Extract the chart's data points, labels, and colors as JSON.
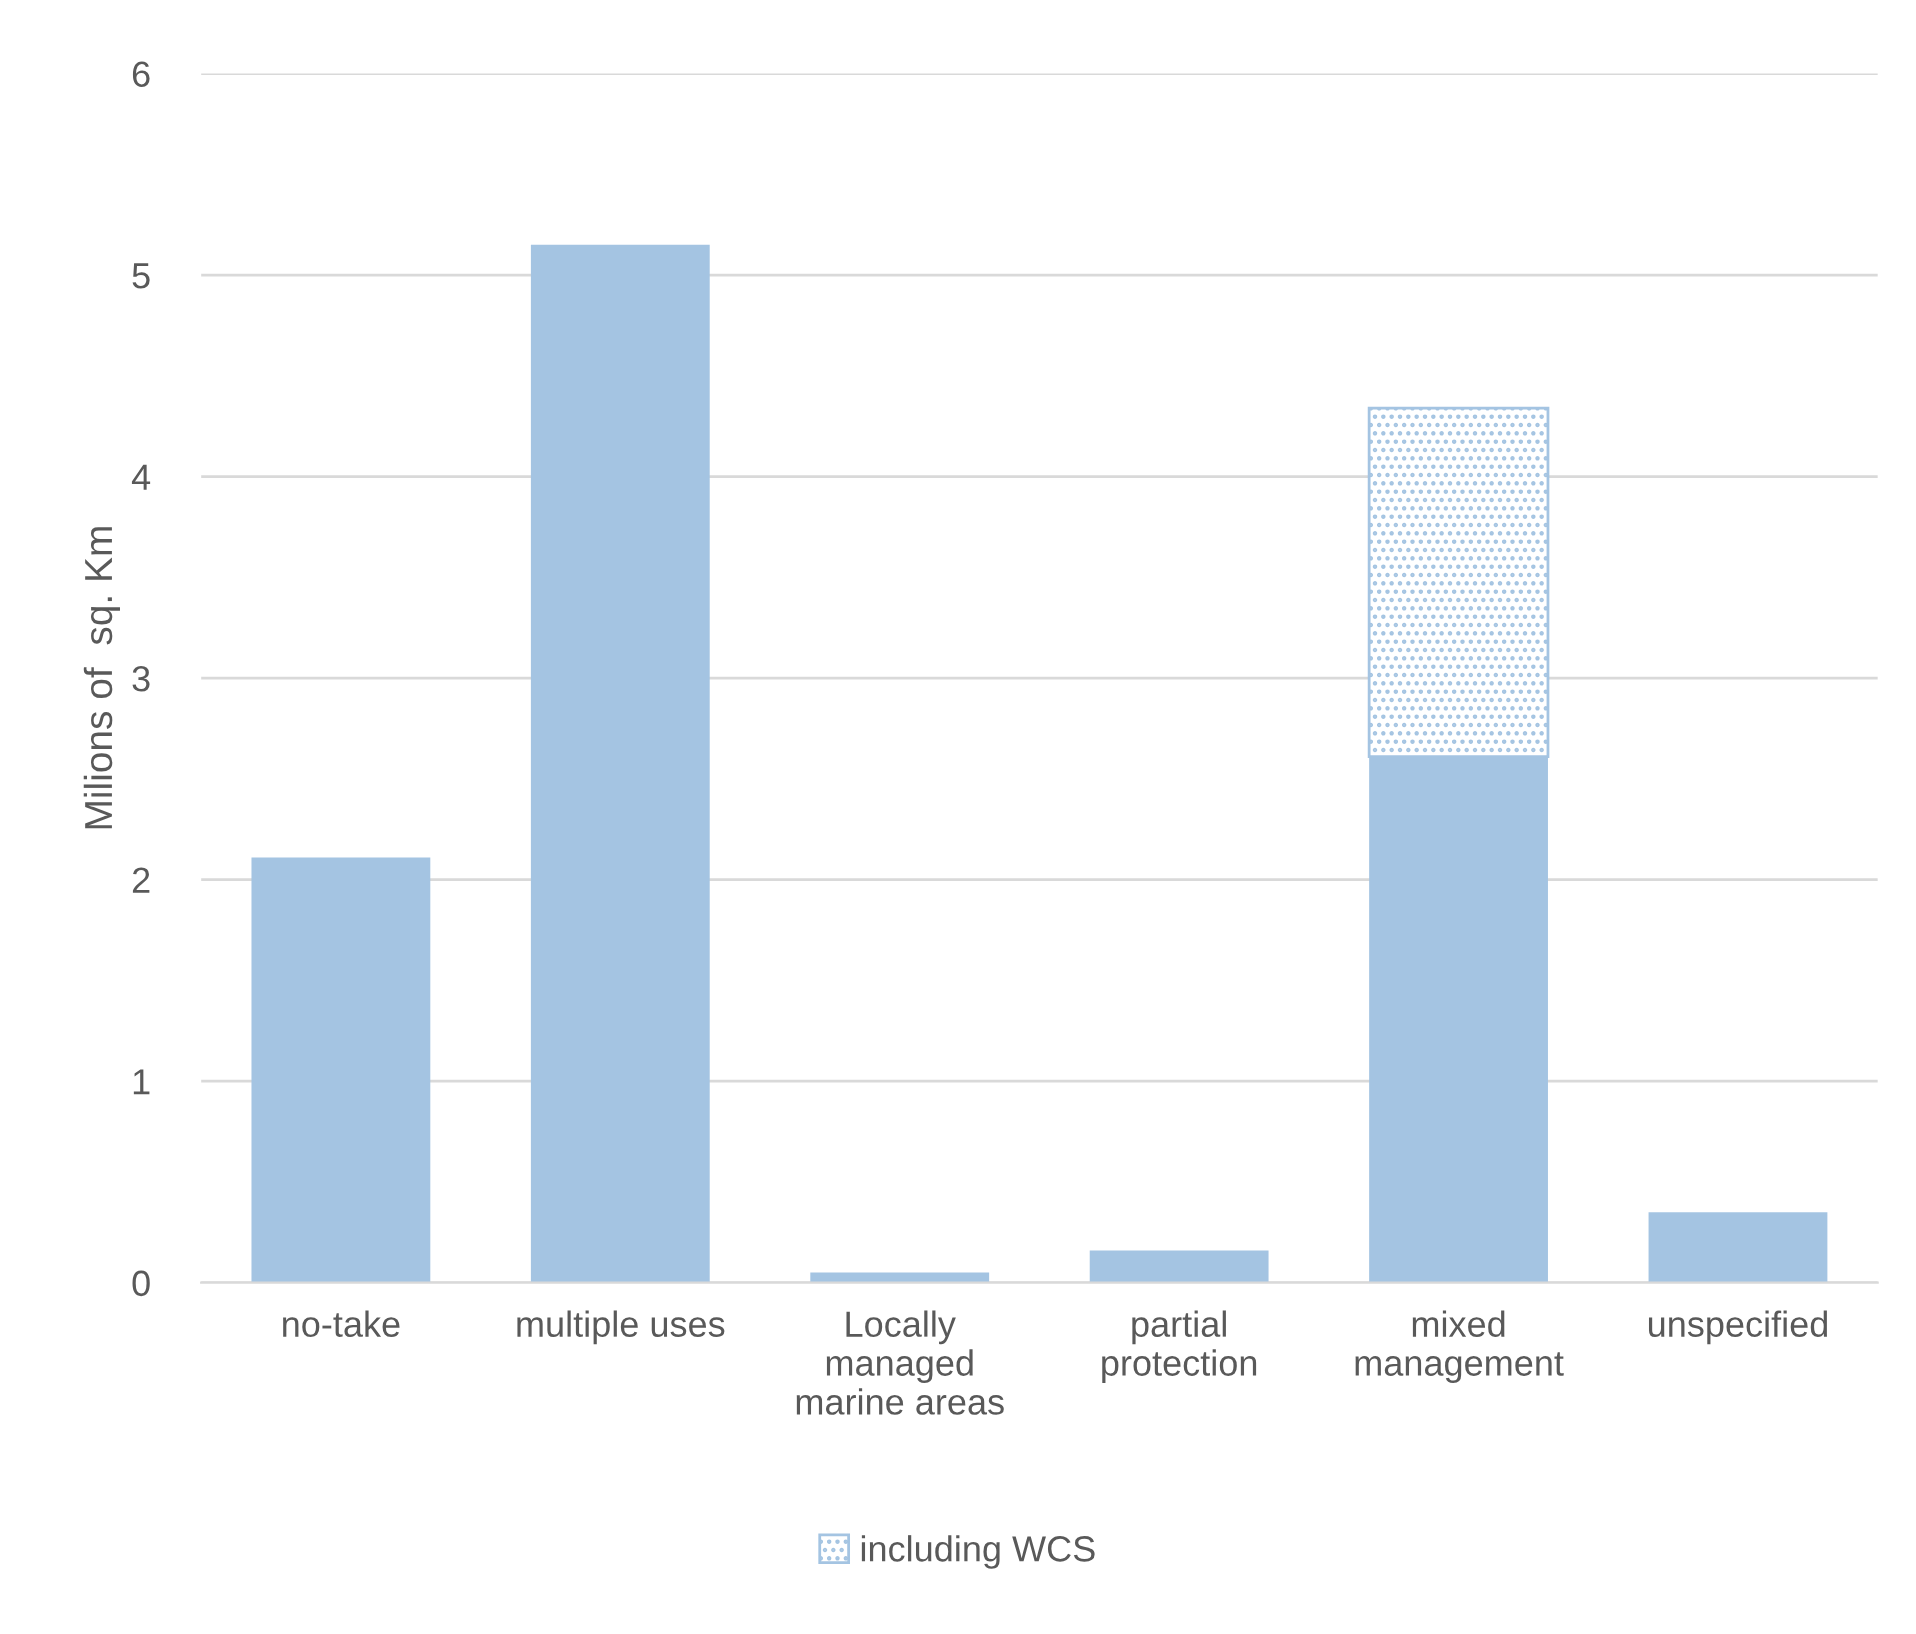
{
  "chart_data": {
    "type": "bar",
    "ylabel": "Milions of  sq. Km",
    "categories": [
      "no-take",
      "multiple uses",
      "Locally\nmanaged\nmarine areas",
      "partial\nprotection",
      "mixed\nmanagement",
      "unspecified"
    ],
    "stacked": true,
    "series": [
      {
        "color": "#a4c4e2",
        "values": [
          2.11,
          5.15,
          0.05,
          0.16,
          2.61,
          0.35
        ]
      },
      {
        "name": "including WCS",
        "color": "#a4c4e2",
        "values": [
          null,
          null,
          null,
          null,
          1.73,
          null
        ]
      }
    ],
    "ylim": [
      0,
      6
    ],
    "yticks": [
      0,
      1,
      2,
      3,
      4,
      5,
      6
    ],
    "grid": "y",
    "legend": "bottom"
  }
}
